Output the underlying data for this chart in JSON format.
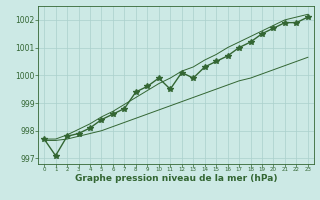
{
  "x": [
    0,
    1,
    2,
    3,
    4,
    5,
    6,
    7,
    8,
    9,
    10,
    11,
    12,
    13,
    14,
    15,
    16,
    17,
    18,
    19,
    20,
    21,
    22,
    23
  ],
  "y_main": [
    997.7,
    997.1,
    997.8,
    997.9,
    998.1,
    998.4,
    998.6,
    998.8,
    999.4,
    999.6,
    999.9,
    999.5,
    1000.1,
    999.9,
    1000.3,
    1000.5,
    1000.7,
    1001.0,
    1001.2,
    1001.5,
    1001.7,
    1001.9,
    1001.9,
    1002.1
  ],
  "y_smooth_low": [
    997.65,
    997.65,
    997.7,
    997.8,
    997.9,
    998.0,
    998.15,
    998.3,
    998.45,
    998.6,
    998.75,
    998.9,
    999.05,
    999.2,
    999.35,
    999.5,
    999.65,
    999.8,
    999.9,
    1000.05,
    1000.2,
    1000.35,
    1000.5,
    1000.65
  ],
  "y_smooth_high": [
    997.7,
    997.7,
    997.85,
    998.05,
    998.25,
    998.5,
    998.7,
    998.95,
    999.2,
    999.45,
    999.7,
    999.9,
    1000.15,
    1000.3,
    1000.55,
    1000.75,
    1001.0,
    1001.2,
    1001.4,
    1001.6,
    1001.8,
    1002.0,
    1002.1,
    1002.2
  ],
  "ylim": [
    996.8,
    1002.5
  ],
  "yticks": [
    997,
    998,
    999,
    1000,
    1001,
    1002
  ],
  "xlim": [
    -0.5,
    23.5
  ],
  "xticks": [
    0,
    1,
    2,
    3,
    4,
    5,
    6,
    7,
    8,
    9,
    10,
    11,
    12,
    13,
    14,
    15,
    16,
    17,
    18,
    19,
    20,
    21,
    22,
    23
  ],
  "xlabel": "Graphe pression niveau de la mer (hPa)",
  "bg_color": "#cce9e5",
  "line_color": "#336633",
  "grid_color": "#aad0cc",
  "marker": "*",
  "marker_size": 4,
  "line_width": 1.0,
  "figsize": [
    3.2,
    2.0
  ],
  "dpi": 100
}
